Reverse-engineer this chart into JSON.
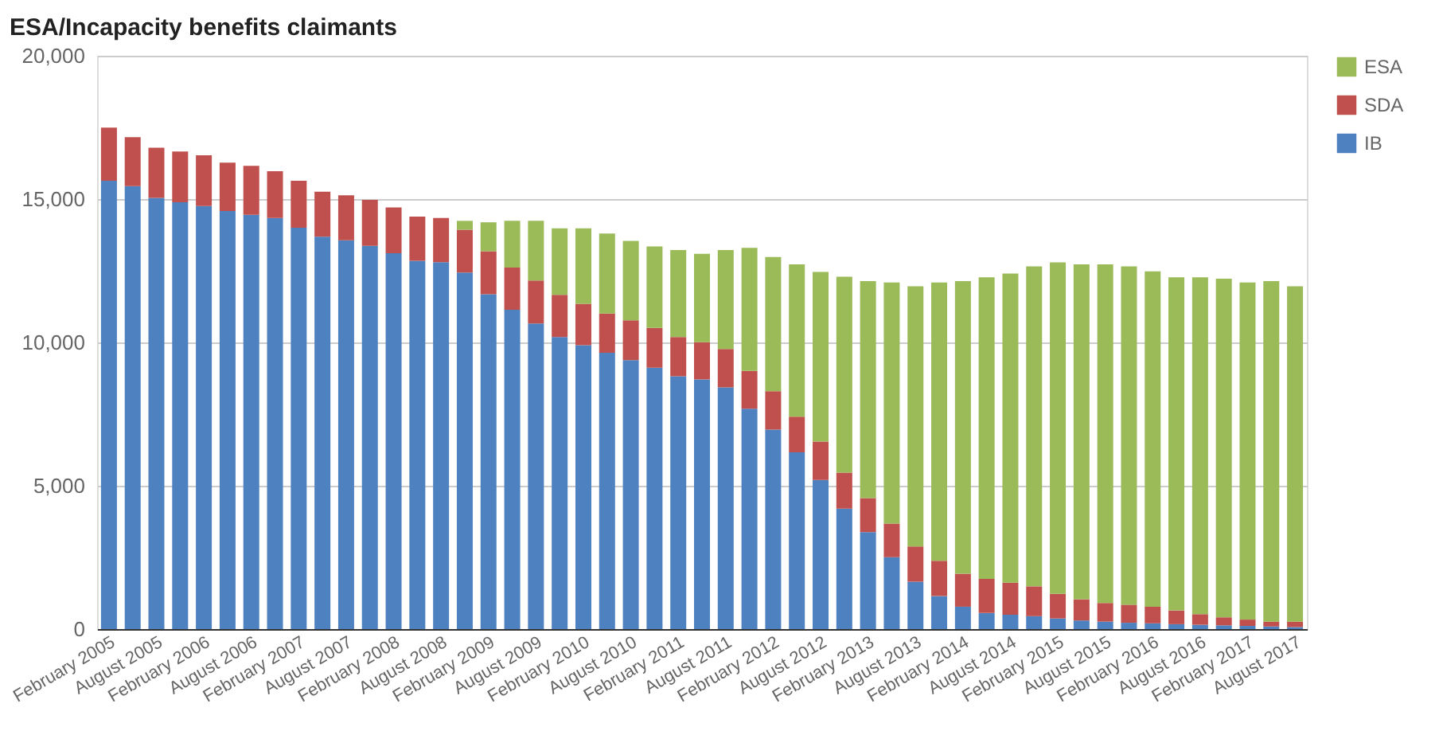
{
  "chart_data": {
    "type": "bar",
    "title": "ESA/Incapacity benefits claimants",
    "stacked": true,
    "categories": [
      "February 2005",
      null,
      "August 2005",
      null,
      "February 2006",
      null,
      "August 2006",
      null,
      "February 2007",
      null,
      "August 2007",
      null,
      "February 2008",
      null,
      "August 2008",
      null,
      "February 2009",
      null,
      "August 2009",
      null,
      "February 2010",
      null,
      "August 2010",
      null,
      "February 2011",
      null,
      "August 2011",
      null,
      "February 2012",
      null,
      "August 2012",
      null,
      "February 2013",
      null,
      "August 2013",
      null,
      "February 2014",
      null,
      "August 2014",
      null,
      "February 2015",
      null,
      "August 2015",
      null,
      "February 2016",
      null,
      "August 2016",
      null,
      "February 2017",
      null,
      "August 2017"
    ],
    "series": [
      {
        "name": "IB",
        "color": "#4e81c0",
        "values": [
          15640,
          15450,
          15040,
          14890,
          14760,
          14580,
          14450,
          14340,
          14000,
          13690,
          13560,
          13370,
          13110,
          12850,
          12800,
          12440,
          11680,
          11140,
          10660,
          10190,
          9900,
          9640,
          9380,
          9120,
          8820,
          8710,
          8430,
          7690,
          6960,
          6170,
          5200,
          4200,
          3380,
          2510,
          1650,
          1150,
          780,
          560,
          500,
          450,
          370,
          300,
          260,
          220,
          200,
          170,
          150,
          130,
          110,
          90,
          70
        ]
      },
      {
        "name": "SDA",
        "color": "#c0504d",
        "values": [
          1850,
          1710,
          1750,
          1770,
          1770,
          1690,
          1710,
          1630,
          1640,
          1570,
          1570,
          1600,
          1600,
          1540,
          1540,
          1490,
          1500,
          1470,
          1500,
          1470,
          1450,
          1370,
          1390,
          1390,
          1370,
          1300,
          1340,
          1320,
          1340,
          1240,
          1340,
          1260,
          1190,
          1170,
          1230,
          1230,
          1150,
          1190,
          1120,
          1040,
          860,
          740,
          650,
          630,
          580,
          480,
          370,
          280,
          220,
          170,
          190
        ]
      },
      {
        "name": "ESA",
        "color": "#9bbb59",
        "values": [
          null,
          null,
          null,
          null,
          null,
          null,
          null,
          null,
          null,
          null,
          null,
          null,
          null,
          null,
          null,
          310,
          1010,
          1630,
          2080,
          2320,
          2630,
          2790,
          2770,
          2840,
          3030,
          3080,
          3450,
          4290,
          4680,
          5310,
          5920,
          6830,
          7570,
          8410,
          9080,
          9710,
          10210,
          10520,
          10780,
          11160,
          11560,
          11680,
          11810,
          11800,
          11700,
          11620,
          11750,
          11810,
          11760,
          11880,
          11700
        ]
      }
    ],
    "ylim": [
      0,
      20000
    ],
    "yticks": [
      0,
      {
        "value": 5000,
        "label": "5,000"
      },
      {
        "value": 10000,
        "label": "10,000"
      },
      {
        "value": 15000,
        "label": "15,000"
      },
      {
        "value": 20000,
        "label": "20,000"
      }
    ],
    "grid": "y",
    "legend": "top right"
  }
}
